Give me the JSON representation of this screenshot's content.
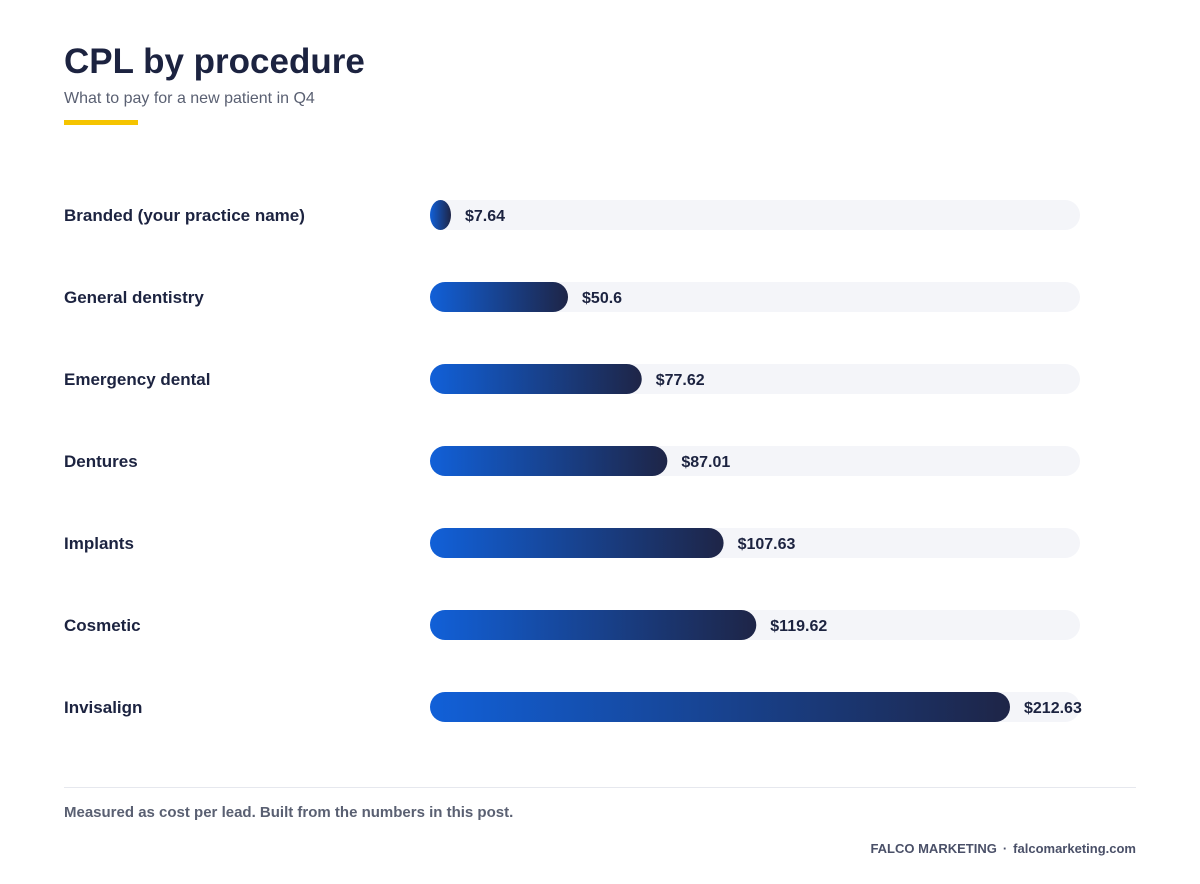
{
  "title": "CPL by procedure",
  "subtitle": "What to pay for a new patient in Q4",
  "footnote": "Measured as cost per lead. Built from the numbers in this post.",
  "credit": {
    "brand": "FALCO MARKETING",
    "separator": "·",
    "site": "falcomarketing.com"
  },
  "colors": {
    "accent": "#f5c400",
    "bar_start": "#1160d8",
    "bar_end": "#1e2547",
    "track": "#f4f5f9",
    "text": "#1c2340"
  },
  "chart_data": {
    "type": "bar",
    "orientation": "horizontal",
    "categories": [
      "Branded (your practice name)",
      "General dentistry",
      "Emergency dental",
      "Dentures",
      "Implants",
      "Cosmetic",
      "Invisalign"
    ],
    "values": [
      7.64,
      50.6,
      77.62,
      87.01,
      107.63,
      119.62,
      212.63
    ],
    "value_labels": [
      "$7.64",
      "$50.6",
      "$77.62",
      "$87.01",
      "$107.63",
      "$119.62",
      "$212.63"
    ],
    "xlim": [
      0,
      212.63
    ],
    "grid": false,
    "legend": "none"
  }
}
